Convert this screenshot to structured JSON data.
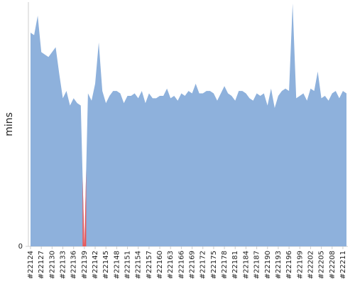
{
  "chart_data": {
    "type": "area",
    "y_label": "mins",
    "categories": [
      "#22124",
      null,
      null,
      "#22127",
      null,
      null,
      "#22130",
      null,
      null,
      "#22133",
      null,
      null,
      "#22136",
      null,
      null,
      "#22139",
      null,
      null,
      "#22142",
      null,
      null,
      "#22145",
      null,
      null,
      "#22148",
      null,
      null,
      "#22151",
      null,
      null,
      "#22154",
      null,
      null,
      "#22157",
      null,
      null,
      "#22160",
      null,
      null,
      "#22163",
      null,
      null,
      "#22166",
      null,
      null,
      "#22169",
      null,
      null,
      "#22172",
      null,
      null,
      "#22175",
      null,
      null,
      "#22178",
      null,
      null,
      "#22181",
      null,
      null,
      "#22184",
      null,
      null,
      "#22187",
      null,
      null,
      "#22190",
      null,
      null,
      "#22193",
      null,
      null,
      "#22196",
      null,
      null,
      "#22199",
      null,
      null,
      "#22202",
      null,
      null,
      "#22205",
      null,
      null,
      "#22208",
      null,
      null,
      "#22211",
      null
    ],
    "values": [
      88,
      87,
      95,
      80,
      79,
      78,
      80,
      82,
      71,
      61,
      64,
      58,
      61,
      59,
      58,
      0,
      63,
      60,
      67,
      84,
      64,
      59,
      62,
      64,
      64,
      63,
      59,
      62,
      62,
      63,
      61,
      64,
      59,
      63,
      61,
      61,
      62,
      62,
      65,
      61,
      62,
      60,
      63,
      62,
      64,
      63,
      67,
      63,
      63,
      64,
      64,
      63,
      60,
      63,
      66,
      63,
      62,
      60,
      64,
      64,
      63,
      61,
      60,
      63,
      62,
      63,
      58,
      65,
      57,
      62,
      64,
      65,
      64,
      100,
      61,
      62,
      63,
      60,
      65,
      64,
      72,
      61,
      62,
      60,
      63,
      64,
      61,
      64,
      63
    ],
    "color": "#8eb1dc",
    "point_colors": [
      "#8eb1dc",
      "#8eb1dc",
      "#8eb1dc",
      "#8eb1dc",
      "#8eb1dc",
      "#8eb1dc",
      "#8eb1dc",
      "#8eb1dc",
      "#8eb1dc",
      "#8eb1dc",
      "#8eb1dc",
      "#8eb1dc",
      "#8eb1dc",
      "#8eb1dc",
      "#8eb1dc",
      "#e8595b",
      "#8eb1dc",
      "#8eb1dc",
      "#8eb1dc",
      "#8eb1dc",
      "#8eb1dc",
      "#8eb1dc",
      "#8eb1dc",
      "#8eb1dc",
      "#8eb1dc",
      "#8eb1dc",
      "#8eb1dc",
      "#8eb1dc",
      "#8eb1dc",
      "#8eb1dc",
      "#8eb1dc",
      "#8eb1dc",
      "#8eb1dc",
      "#8eb1dc",
      "#8eb1dc",
      "#8eb1dc",
      "#8eb1dc",
      "#8eb1dc",
      "#8eb1dc",
      "#8eb1dc",
      "#8eb1dc",
      "#8eb1dc",
      "#8eb1dc",
      "#8eb1dc",
      "#8eb1dc",
      "#8eb1dc",
      "#8eb1dc",
      "#8eb1dc",
      "#8eb1dc",
      "#8eb1dc",
      "#8eb1dc",
      "#8eb1dc",
      "#8eb1dc",
      "#8eb1dc",
      "#8eb1dc",
      "#8eb1dc",
      "#8eb1dc",
      "#8eb1dc",
      "#8eb1dc",
      "#8eb1dc",
      "#8eb1dc",
      "#8eb1dc",
      "#8eb1dc",
      "#8eb1dc",
      "#8eb1dc",
      "#8eb1dc",
      "#8eb1dc",
      "#8eb1dc",
      "#8eb1dc",
      "#8eb1dc",
      "#8eb1dc",
      "#8eb1dc",
      "#8eb1dc",
      "#8eb1dc",
      "#8eb1dc",
      "#8eb1dc",
      "#8eb1dc",
      "#8eb1dc",
      "#8eb1dc",
      "#8eb1dc",
      "#8eb1dc",
      "#8eb1dc",
      "#8eb1dc",
      "#8eb1dc",
      "#8eb1dc",
      "#8eb1dc",
      "#8eb1dc",
      "#8eb1dc",
      "#8eb1dc"
    ],
    "ylim": [
      0,
      100
    ],
    "yticks": [
      0
    ]
  }
}
